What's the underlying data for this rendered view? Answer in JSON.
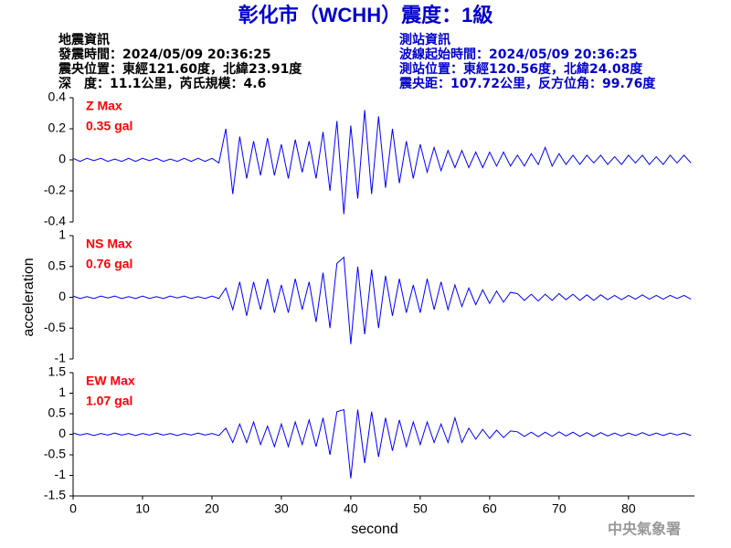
{
  "title": "彰化市（WCHH）震度：1級",
  "info_left": [
    "地震資訊",
    "發震時間：2024/05/09 20:36:25",
    "震央位置：東經121.60度，北緯23.91度",
    "深　度：11.1公里，芮氏規模：4.6"
  ],
  "info_right": [
    "測站資訊",
    "波線起始時間：2024/05/09 20:36:25",
    "測站位置：東經120.56度，北緯24.08度",
    "震央距：107.72公里，反方位角：99.76度"
  ],
  "footer": "中央氣象署",
  "chart_data": [
    {
      "type": "line",
      "annotations": [
        "Z Max",
        "0.35 gal"
      ],
      "annotation_color": "#ff0000",
      "x": [
        0,
        1,
        2,
        3,
        4,
        5,
        6,
        7,
        8,
        9,
        10,
        11,
        12,
        13,
        14,
        15,
        16,
        17,
        18,
        19,
        20,
        21,
        22,
        23,
        24,
        25,
        26,
        27,
        28,
        29,
        30,
        31,
        32,
        33,
        34,
        35,
        36,
        37,
        38,
        39,
        40,
        41,
        42,
        43,
        44,
        45,
        46,
        47,
        48,
        49,
        50,
        51,
        52,
        53,
        54,
        55,
        56,
        57,
        58,
        59,
        60,
        61,
        62,
        63,
        64,
        65,
        66,
        67,
        68,
        69,
        70,
        71,
        72,
        73,
        74,
        75,
        76,
        77,
        78,
        79,
        80,
        81,
        82,
        83,
        84,
        85,
        86,
        87,
        88,
        89
      ],
      "series": [
        {
          "color": "#0000ff",
          "values": [
            0.01,
            -0.01,
            0.01,
            -0.005,
            0.01,
            -0.01,
            0.005,
            -0.01,
            0.01,
            -0.01,
            0.01,
            -0.005,
            0.01,
            -0.01,
            0.005,
            -0.01,
            0.01,
            -0.01,
            0.01,
            -0.01,
            0.01,
            -0.02,
            0.2,
            -0.22,
            0.15,
            -0.12,
            0.12,
            -0.1,
            0.14,
            -0.1,
            0.1,
            -0.12,
            0.13,
            -0.08,
            0.12,
            -0.12,
            0.18,
            -0.2,
            0.25,
            -0.35,
            0.22,
            -0.25,
            0.32,
            -0.22,
            0.28,
            -0.18,
            0.2,
            -0.15,
            0.12,
            -0.12,
            0.1,
            -0.08,
            0.08,
            -0.07,
            0.06,
            -0.05,
            0.06,
            -0.05,
            0.05,
            -0.05,
            0.05,
            -0.04,
            0.05,
            -0.04,
            0.03,
            -0.04,
            0.04,
            -0.03,
            0.08,
            -0.04,
            0.04,
            -0.03,
            0.03,
            -0.03,
            0.03,
            -0.02,
            0.03,
            -0.03,
            0.02,
            -0.03,
            0.03,
            -0.02,
            0.03,
            -0.03,
            0.02,
            -0.03,
            0.03,
            -0.02,
            0.03,
            -0.02
          ]
        }
      ],
      "xlim": [
        0,
        89.5
      ],
      "ylim": [
        -0.4,
        0.4
      ],
      "yticks": [
        -0.4,
        -0.2,
        0,
        0.2,
        0.4
      ]
    },
    {
      "type": "line",
      "annotations": [
        "NS Max",
        "0.76 gal"
      ],
      "annotation_color": "#ff0000",
      "ylabel": "acceleration",
      "x": [
        0,
        1,
        2,
        3,
        4,
        5,
        6,
        7,
        8,
        9,
        10,
        11,
        12,
        13,
        14,
        15,
        16,
        17,
        18,
        19,
        20,
        21,
        22,
        23,
        24,
        25,
        26,
        27,
        28,
        29,
        30,
        31,
        32,
        33,
        34,
        35,
        36,
        37,
        38,
        39,
        40,
        41,
        42,
        43,
        44,
        45,
        46,
        47,
        48,
        49,
        50,
        51,
        52,
        53,
        54,
        55,
        56,
        57,
        58,
        59,
        60,
        61,
        62,
        63,
        64,
        65,
        66,
        67,
        68,
        69,
        70,
        71,
        72,
        73,
        74,
        75,
        76,
        77,
        78,
        79,
        80,
        81,
        82,
        83,
        84,
        85,
        86,
        87,
        88,
        89
      ],
      "series": [
        {
          "color": "#0000ff",
          "values": [
            0.02,
            -0.02,
            0.01,
            -0.02,
            0.02,
            -0.01,
            0.02,
            -0.02,
            0.01,
            -0.02,
            0.02,
            -0.02,
            0.01,
            -0.02,
            0.02,
            -0.01,
            0.02,
            -0.02,
            0.01,
            -0.02,
            0.02,
            -0.02,
            0.15,
            -0.2,
            0.25,
            -0.3,
            0.25,
            -0.2,
            0.3,
            -0.25,
            0.2,
            -0.25,
            0.3,
            -0.2,
            0.25,
            -0.4,
            0.4,
            -0.5,
            0.55,
            0.65,
            -0.76,
            0.5,
            -0.6,
            0.45,
            -0.5,
            0.35,
            -0.3,
            0.3,
            -0.25,
            0.2,
            -0.25,
            0.3,
            -0.2,
            0.25,
            -0.2,
            0.2,
            -0.15,
            0.15,
            -0.12,
            0.12,
            -0.1,
            0.1,
            -0.08,
            0.08,
            0.06,
            -0.05,
            0.05,
            -0.06,
            0.05,
            -0.05,
            0.06,
            -0.04,
            0.05,
            -0.05,
            0.04,
            -0.05,
            0.04,
            -0.04,
            0.03,
            -0.04,
            0.03,
            -0.03,
            0.04,
            -0.03,
            0.03,
            -0.03,
            0.03,
            -0.02,
            0.03,
            -0.03
          ]
        }
      ],
      "xlim": [
        0,
        89.5
      ],
      "ylim": [
        -1,
        1
      ],
      "yticks": [
        -1,
        -0.5,
        0,
        0.5,
        1
      ]
    },
    {
      "type": "line",
      "annotations": [
        "EW Max",
        "1.07 gal"
      ],
      "annotation_color": "#ff0000",
      "xlabel": "second",
      "x": [
        0,
        1,
        2,
        3,
        4,
        5,
        6,
        7,
        8,
        9,
        10,
        11,
        12,
        13,
        14,
        15,
        16,
        17,
        18,
        19,
        20,
        21,
        22,
        23,
        24,
        25,
        26,
        27,
        28,
        29,
        30,
        31,
        32,
        33,
        34,
        35,
        36,
        37,
        38,
        39,
        40,
        41,
        42,
        43,
        44,
        45,
        46,
        47,
        48,
        49,
        50,
        51,
        52,
        53,
        54,
        55,
        56,
        57,
        58,
        59,
        60,
        61,
        62,
        63,
        64,
        65,
        66,
        67,
        68,
        69,
        70,
        71,
        72,
        73,
        74,
        75,
        76,
        77,
        78,
        79,
        80,
        81,
        82,
        83,
        84,
        85,
        86,
        87,
        88,
        89
      ],
      "series": [
        {
          "color": "#0000ff",
          "values": [
            0.03,
            -0.02,
            0.02,
            -0.03,
            0.02,
            -0.02,
            0.03,
            -0.02,
            0.02,
            -0.03,
            0.02,
            -0.02,
            0.03,
            -0.02,
            0.02,
            -0.03,
            0.02,
            -0.02,
            0.03,
            -0.02,
            0.02,
            -0.03,
            0.15,
            -0.2,
            0.25,
            -0.2,
            0.3,
            -0.25,
            0.2,
            -0.3,
            0.25,
            -0.3,
            0.3,
            -0.25,
            0.35,
            -0.3,
            0.4,
            -0.5,
            0.55,
            0.6,
            -1.07,
            0.6,
            -0.7,
            0.55,
            -0.55,
            0.4,
            -0.4,
            0.35,
            -0.3,
            0.3,
            -0.25,
            0.3,
            -0.2,
            0.25,
            -0.2,
            0.4,
            -0.2,
            0.15,
            -0.12,
            0.12,
            -0.1,
            0.1,
            -0.08,
            0.08,
            0.06,
            -0.05,
            0.05,
            -0.06,
            0.05,
            -0.05,
            0.06,
            -0.04,
            0.05,
            -0.05,
            0.04,
            -0.05,
            0.04,
            -0.04,
            0.03,
            -0.04,
            0.03,
            -0.03,
            0.04,
            -0.03,
            0.03,
            -0.03,
            0.03,
            -0.02,
            0.03,
            -0.03
          ]
        }
      ],
      "xlim": [
        0,
        89.5
      ],
      "ylim": [
        -1.5,
        1.5
      ],
      "yticks": [
        -1.5,
        -1,
        -0.5,
        0,
        0.5,
        1,
        1.5
      ],
      "xticks": [
        0,
        10,
        20,
        30,
        40,
        50,
        60,
        70,
        80
      ]
    }
  ]
}
